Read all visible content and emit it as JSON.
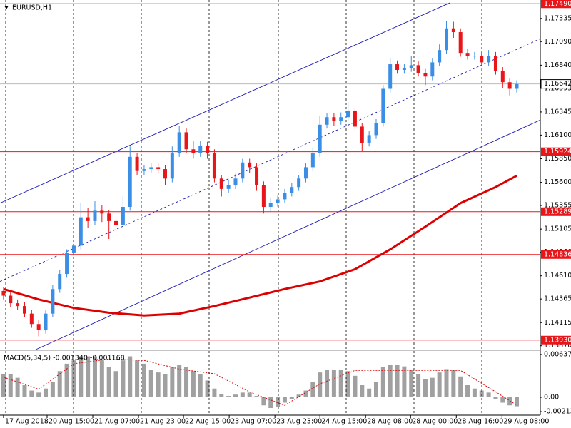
{
  "chart_data": [
    {
      "type": "candlestick",
      "title": "EURUSD,H1",
      "open": [
        1.1445,
        1.144,
        1.1432,
        1.1429,
        1.1421,
        1.141,
        1.1404,
        1.1421,
        1.1447,
        1.1463,
        1.1485,
        1.1493,
        1.1523,
        1.1519,
        1.153,
        1.1527,
        1.1519,
        1.1515,
        1.1534,
        1.1587,
        1.1572,
        1.1574,
        1.1576,
        1.1574,
        1.1564,
        1.1591,
        1.1613,
        1.1595,
        1.1591,
        1.1599,
        1.1591,
        1.1564,
        1.1553,
        1.1557,
        1.1564,
        1.1581,
        1.1576,
        1.1557,
        1.1534,
        1.1538,
        1.1542,
        1.1549,
        1.1555,
        1.1564,
        1.1576,
        1.1591,
        1.1621,
        1.1629,
        1.1625,
        1.1629,
        1.1636,
        1.1619,
        1.1602,
        1.161,
        1.1623,
        1.1659,
        1.1685,
        1.1679,
        1.1681,
        1.1684,
        1.1676,
        1.1672,
        1.1687,
        1.17,
        1.1723,
        1.1719,
        1.1697,
        1.1694,
        1.1694,
        1.1687,
        1.1694,
        1.1678,
        1.1666,
        1.1659
      ],
      "high": [
        1.1449,
        1.1444,
        1.1436,
        1.1433,
        1.1425,
        1.1414,
        1.1425,
        1.1451,
        1.1467,
        1.1489,
        1.1497,
        1.1538,
        1.1533,
        1.154,
        1.1536,
        1.1531,
        1.1523,
        1.1545,
        1.1598,
        1.1591,
        1.1578,
        1.158,
        1.158,
        1.1578,
        1.1598,
        1.162,
        1.1617,
        1.1604,
        1.1604,
        1.1603,
        1.1595,
        1.1568,
        1.1562,
        1.1569,
        1.1585,
        1.1585,
        1.158,
        1.1561,
        1.1543,
        1.1546,
        1.1553,
        1.1559,
        1.1568,
        1.158,
        1.1596,
        1.163,
        1.1633,
        1.1633,
        1.1634,
        1.1645,
        1.164,
        1.1623,
        1.1614,
        1.1627,
        1.1663,
        1.1692,
        1.1689,
        1.1685,
        1.1694,
        1.1688,
        1.168,
        1.1691,
        1.1706,
        1.1731,
        1.173,
        1.1723,
        1.1701,
        1.1698,
        1.1698,
        1.17,
        1.1698,
        1.1682,
        1.167,
        1.1668
      ],
      "low": [
        1.1436,
        1.1428,
        1.1425,
        1.1417,
        1.1406,
        1.1397,
        1.14,
        1.1417,
        1.1443,
        1.1459,
        1.1481,
        1.1489,
        1.1512,
        1.1515,
        1.1518,
        1.15,
        1.1506,
        1.1511,
        1.153,
        1.1568,
        1.1568,
        1.157,
        1.157,
        1.1557,
        1.156,
        1.1587,
        1.1591,
        1.1585,
        1.1587,
        1.1585,
        1.156,
        1.1545,
        1.1549,
        1.1553,
        1.156,
        1.157,
        1.1551,
        1.1527,
        1.1529,
        1.1534,
        1.1538,
        1.1545,
        1.1551,
        1.156,
        1.1572,
        1.1587,
        1.1617,
        1.162,
        1.1621,
        1.1625,
        1.1615,
        1.1593,
        1.1598,
        1.1606,
        1.1619,
        1.1655,
        1.1675,
        1.1675,
        1.1677,
        1.1672,
        1.1663,
        1.1668,
        1.1683,
        1.1696,
        1.1713,
        1.1693,
        1.169,
        1.169,
        1.1683,
        1.1683,
        1.1674,
        1.166,
        1.1652,
        1.1655
      ],
      "close": [
        1.144,
        1.1432,
        1.1429,
        1.1421,
        1.141,
        1.1404,
        1.1421,
        1.1447,
        1.1463,
        1.1485,
        1.1493,
        1.1523,
        1.1519,
        1.153,
        1.1527,
        1.1519,
        1.1515,
        1.1534,
        1.1587,
        1.1572,
        1.1574,
        1.1576,
        1.1574,
        1.1564,
        1.1591,
        1.1613,
        1.1595,
        1.1591,
        1.1599,
        1.1591,
        1.1564,
        1.1553,
        1.1557,
        1.1564,
        1.1581,
        1.1576,
        1.1557,
        1.1534,
        1.1538,
        1.1542,
        1.1549,
        1.1555,
        1.1564,
        1.1576,
        1.1591,
        1.1621,
        1.1629,
        1.1625,
        1.1629,
        1.1636,
        1.1619,
        1.1602,
        1.161,
        1.1623,
        1.1659,
        1.1685,
        1.1679,
        1.1681,
        1.1684,
        1.1676,
        1.1672,
        1.1687,
        1.17,
        1.1723,
        1.1719,
        1.1697,
        1.1694,
        1.1694,
        1.1687,
        1.1694,
        1.1678,
        1.1666,
        1.1659,
        1.1664
      ],
      "up_color": "#3a8ee6",
      "down_color": "#e8161b",
      "xlim": [
        -0.5,
        76.35
      ],
      "ylim": [
        1.1383,
        1.1753
      ],
      "yticks": [
        1.17335,
        {
          "value": 1.1709,
          "label": "1.17090"
        },
        {
          "value": 1.1684,
          "label": "1.16840"
        },
        1.16595,
        1.16345,
        {
          "value": 1.161,
          "label": "1.16100"
        },
        {
          "value": 1.1585,
          "label": "1.15850"
        },
        {
          "value": 1.156,
          "label": "1.15600"
        },
        1.15355,
        1.15105,
        {
          "value": 1.1486,
          "label": "1.14860"
        },
        {
          "value": 1.1461,
          "label": "1.14610"
        },
        1.14365,
        1.14115,
        {
          "value": 1.1387,
          "label": "1.13870"
        }
      ],
      "levels": [
        {
          "value": 1.1749,
          "label": "1.17490"
        },
        1.15924,
        1.15289,
        1.14836,
        {
          "value": 1.1393,
          "label": "1.13930"
        }
      ],
      "level_color": "#e8161b",
      "last_price": 1.16642,
      "lines": [
        {
          "x": [
            0,
            5,
            10,
            15,
            20,
            25,
            30,
            35,
            40,
            45,
            50,
            55,
            60,
            65,
            70,
            73
          ],
          "values": [
            1.1447,
            1.1436,
            1.1427,
            1.1422,
            1.1419,
            1.1421,
            1.1429,
            1.1438,
            1.1447,
            1.1455,
            1.1468,
            1.1489,
            1.1513,
            1.1538,
            1.1555,
            1.1567
          ],
          "color": "#dd0000"
        }
      ],
      "trendlines": [
        {
          "x": [
            -0.5,
            63.5
          ],
          "values": [
            1.1538,
            1.175
          ],
          "color": "#1a1ab0",
          "dashed": false
        },
        {
          "x": [
            -0.5,
            76.35
          ],
          "values": [
            1.1455,
            1.1712
          ],
          "color": "#1a1ab0",
          "dashed": true
        },
        {
          "x": [
            4.6,
            76.35
          ],
          "values": [
            1.1383,
            1.1626
          ],
          "color": "#1a1ab0",
          "dashed": false
        }
      ]
    },
    {
      "type": "macd",
      "title": "MACD(5,34,5) -0.001340 -0.001168",
      "values": [
        0.0034,
        0.0034,
        0.0029,
        0.0018,
        0.001,
        0.0007,
        0.0013,
        0.0023,
        0.0039,
        0.005,
        0.0055,
        0.0061,
        0.0061,
        0.0061,
        0.0055,
        0.0045,
        0.0039,
        0.0055,
        0.0061,
        0.0055,
        0.005,
        0.0041,
        0.0037,
        0.0034,
        0.0045,
        0.0048,
        0.0045,
        0.0039,
        0.0034,
        0.0025,
        0.0013,
        0.0005,
        0.0002,
        0.0004,
        0.0007,
        0.0007,
        0.0002,
        -0.0012,
        -0.0016,
        -0.0014,
        -0.0008,
        -0.0003,
        0.0004,
        0.001,
        0.0023,
        0.0037,
        0.0041,
        0.0041,
        0.0041,
        0.0039,
        0.0032,
        0.0018,
        0.0013,
        0.0023,
        0.0045,
        0.0048,
        0.0048,
        0.0046,
        0.0041,
        0.0034,
        0.0027,
        0.0029,
        0.0037,
        0.0042,
        0.0041,
        0.0031,
        0.0018,
        0.0013,
        0.001,
        0.0007,
        -0.0003,
        -0.0008,
        -0.0012,
        -0.00134
      ],
      "color": "#a0a0a0",
      "signal": {
        "x": [
          0,
          5,
          10,
          15,
          20,
          25,
          30,
          35,
          40,
          45,
          50,
          55,
          60,
          65,
          70,
          73
        ],
        "values": [
          0.003,
          0.0012,
          0.005,
          0.0057,
          0.0055,
          0.0042,
          0.0035,
          0.0008,
          -0.0012,
          0.002,
          0.004,
          0.004,
          0.004,
          0.004,
          0.0008,
          -0.00117
        ],
        "color": "#dd0000"
      },
      "xlim": [
        -0.5,
        76.35
      ],
      "ylim": [
        -0.00266,
        0.0069
      ],
      "yticks": [
        0.006372,
        {
          "value": 0,
          "label": "0.00"
        },
        -0.002139
      ],
      "xticks": [
        {
          "value": 0,
          "label": "17 Aug 2018"
        },
        {
          "value": 6.2,
          "label": "20 Aug 15:00"
        },
        {
          "value": 12.7,
          "label": "21 Aug 07:00"
        },
        {
          "value": 19.2,
          "label": "21 Aug 23:00"
        },
        {
          "value": 25.6,
          "label": "22 Aug 15:00"
        },
        {
          "value": 32.1,
          "label": "23 Aug 07:00"
        },
        {
          "value": 38.6,
          "label": "23 Aug 23:00"
        },
        {
          "value": 45,
          "label": "24 Aug 15:00"
        },
        {
          "value": 51.5,
          "label": "28 Aug 08:00"
        },
        {
          "value": 57.9,
          "label": "28 Aug 00:00"
        },
        {
          "value": 64.4,
          "label": "28 Aug 16:00"
        },
        {
          "value": 70.9,
          "label": "29 Aug 08:00"
        }
      ]
    }
  ]
}
